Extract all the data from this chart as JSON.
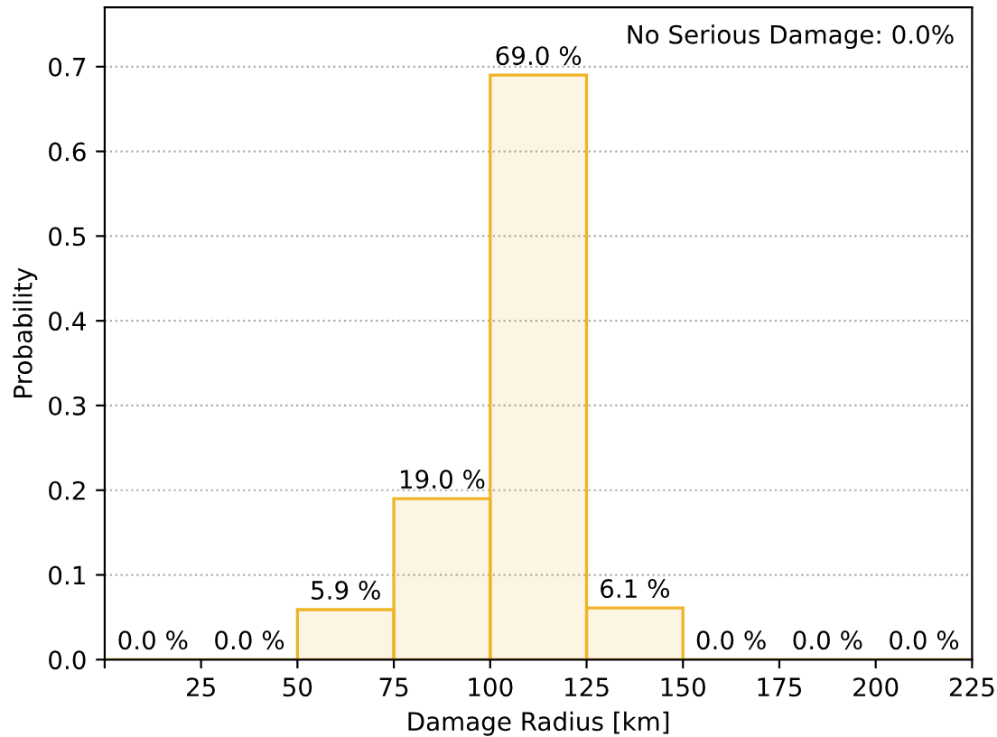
{
  "chart_data": {
    "type": "histogram",
    "xlabel": "Damage Radius [km]",
    "ylabel": "Probability",
    "bins": [
      0,
      25,
      50,
      75,
      100,
      125,
      150,
      175,
      200,
      225
    ],
    "values": [
      0,
      0,
      0.059,
      0.19,
      0.69,
      0.061,
      0,
      0,
      0
    ],
    "value_labels": [
      "0.0 %",
      "0.0 %",
      "5.9 %",
      "19.0 %",
      "69.0 %",
      "6.1 %",
      "0.0 %",
      "0.0 %",
      "0.0 %"
    ],
    "color": "#f0b429",
    "xlim": [
      0,
      225
    ],
    "xticks": [
      {
        "value": 0,
        "label": null
      },
      25,
      50,
      75,
      100,
      125,
      150,
      175,
      200,
      225
    ],
    "ylim": [
      0,
      0.77
    ],
    "yticks": [
      {
        "value": 0,
        "label": "0.0"
      },
      0.1,
      0.2,
      0.3,
      0.4,
      0.5,
      0.6,
      0.7
    ],
    "grid": "y",
    "annotations": [
      "No Serious Damage: 0.0%"
    ]
  }
}
